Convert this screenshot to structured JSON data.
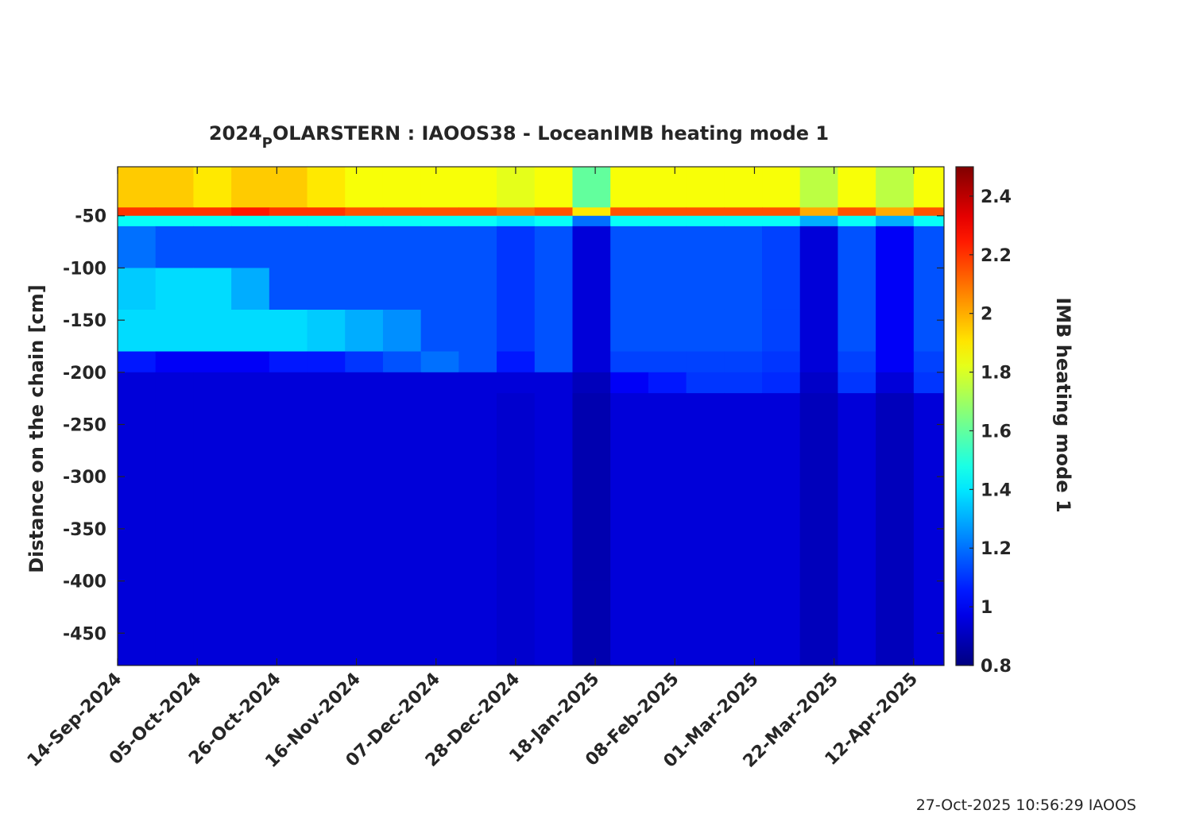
{
  "chart_data": {
    "type": "heatmap",
    "title": [
      "2024",
      "P",
      "OLARSTERN : IAOOS38 - LoceanIMB heating mode 1"
    ],
    "ylabel": "Distance on the chain [cm]",
    "colorbar_label": "IMB heating mode 1",
    "footer": "27-Oct-2025 10:56:29 IAOOS",
    "colormap": "jet",
    "x": [
      "2024-09-14",
      "2024-09-24",
      "2024-10-04",
      "2024-10-14",
      "2024-10-24",
      "2024-11-03",
      "2024-11-13",
      "2024-11-23",
      "2024-12-03",
      "2024-12-13",
      "2024-12-23",
      "2025-01-02",
      "2025-01-12",
      "2025-01-22",
      "2025-02-01",
      "2025-02-11",
      "2025-02-21",
      "2025-03-03",
      "2025-03-13",
      "2025-03-23",
      "2025-04-02",
      "2025-04-12"
    ],
    "y_edges": [
      -3,
      -42,
      -50,
      -60,
      -100,
      -140,
      -180,
      -200,
      -220,
      -300,
      -400,
      -481
    ],
    "z": [
      [
        1.95,
        1.95,
        1.9,
        1.95,
        1.95,
        1.9,
        1.85,
        1.85,
        1.85,
        1.85,
        1.82,
        1.85,
        1.6,
        1.85,
        1.85,
        1.85,
        1.85,
        1.85,
        1.75,
        1.85,
        1.75,
        1.85
      ],
      [
        2.2,
        2.2,
        2.2,
        2.25,
        2.2,
        2.2,
        2.15,
        2.15,
        2.15,
        2.15,
        2.1,
        2.15,
        1.9,
        2.15,
        2.15,
        2.15,
        2.15,
        2.15,
        2.0,
        2.15,
        2.0,
        2.15
      ],
      [
        1.45,
        1.45,
        1.45,
        1.45,
        1.45,
        1.45,
        1.45,
        1.45,
        1.45,
        1.45,
        1.4,
        1.45,
        1.2,
        1.45,
        1.45,
        1.45,
        1.45,
        1.45,
        1.3,
        1.45,
        1.3,
        1.45
      ],
      [
        1.2,
        1.15,
        1.15,
        1.15,
        1.15,
        1.15,
        1.15,
        1.15,
        1.15,
        1.15,
        1.1,
        1.15,
        0.95,
        1.15,
        1.15,
        1.15,
        1.15,
        1.12,
        0.95,
        1.15,
        1.0,
        1.15
      ],
      [
        1.35,
        1.38,
        1.38,
        1.3,
        1.15,
        1.15,
        1.15,
        1.15,
        1.15,
        1.15,
        1.1,
        1.15,
        0.95,
        1.15,
        1.15,
        1.15,
        1.15,
        1.12,
        0.95,
        1.15,
        1.0,
        1.15
      ],
      [
        1.38,
        1.38,
        1.38,
        1.38,
        1.38,
        1.35,
        1.3,
        1.25,
        1.15,
        1.15,
        1.1,
        1.15,
        0.95,
        1.15,
        1.15,
        1.15,
        1.15,
        1.12,
        0.95,
        1.15,
        1.0,
        1.15
      ],
      [
        1.05,
        1.0,
        1.0,
        1.0,
        1.05,
        1.05,
        1.1,
        1.15,
        1.2,
        1.15,
        1.05,
        1.15,
        0.95,
        1.12,
        1.12,
        1.12,
        1.12,
        1.1,
        0.95,
        1.12,
        1.0,
        1.12
      ],
      [
        0.95,
        0.95,
        0.95,
        0.95,
        0.95,
        0.95,
        0.95,
        0.95,
        0.95,
        0.95,
        0.95,
        0.95,
        0.9,
        1.0,
        1.05,
        1.1,
        1.1,
        1.08,
        0.92,
        1.1,
        0.95,
        1.1
      ],
      [
        0.95,
        0.95,
        0.95,
        0.95,
        0.95,
        0.95,
        0.95,
        0.95,
        0.95,
        0.95,
        0.93,
        0.95,
        0.88,
        0.95,
        0.95,
        0.95,
        0.95,
        0.95,
        0.9,
        0.95,
        0.9,
        0.95
      ],
      [
        0.95,
        0.95,
        0.95,
        0.95,
        0.95,
        0.95,
        0.95,
        0.95,
        0.95,
        0.95,
        0.93,
        0.95,
        0.88,
        0.95,
        0.95,
        0.95,
        0.95,
        0.95,
        0.9,
        0.95,
        0.9,
        0.95
      ],
      [
        0.95,
        0.95,
        0.95,
        0.95,
        0.95,
        0.95,
        0.95,
        0.95,
        0.95,
        0.95,
        0.93,
        0.95,
        0.88,
        0.95,
        0.95,
        0.95,
        0.95,
        0.95,
        0.9,
        0.95,
        0.9,
        0.95
      ]
    ],
    "xlim": [
      "2024-09-14",
      "2025-04-20"
    ],
    "xticks": [
      {
        "value": "2024-09-14",
        "label": "14-Sep-2024"
      },
      {
        "value": "2024-10-05",
        "label": "05-Oct-2024"
      },
      {
        "value": "2024-10-26",
        "label": "26-Oct-2024"
      },
      {
        "value": "2024-11-16",
        "label": "16-Nov-2024"
      },
      {
        "value": "2024-12-07",
        "label": "07-Dec-2024"
      },
      {
        "value": "2024-12-28",
        "label": "28-Dec-2024"
      },
      {
        "value": "2025-01-18",
        "label": "18-Jan-2025"
      },
      {
        "value": "2025-02-08",
        "label": "08-Feb-2025"
      },
      {
        "value": "2025-03-01",
        "label": "01-Mar-2025"
      },
      {
        "value": "2025-03-22",
        "label": "22-Mar-2025"
      },
      {
        "value": "2025-04-12",
        "label": "12-Apr-2025"
      }
    ],
    "ylim": [
      -481,
      -3
    ],
    "yticks": [
      -450,
      -400,
      -350,
      -300,
      -250,
      -200,
      -150,
      -100,
      -50
    ],
    "clim": [
      0.8,
      2.5
    ],
    "cticks": [
      0.8,
      1,
      1.2,
      1.4,
      1.6,
      1.8,
      2,
      2.2,
      2.4
    ]
  }
}
